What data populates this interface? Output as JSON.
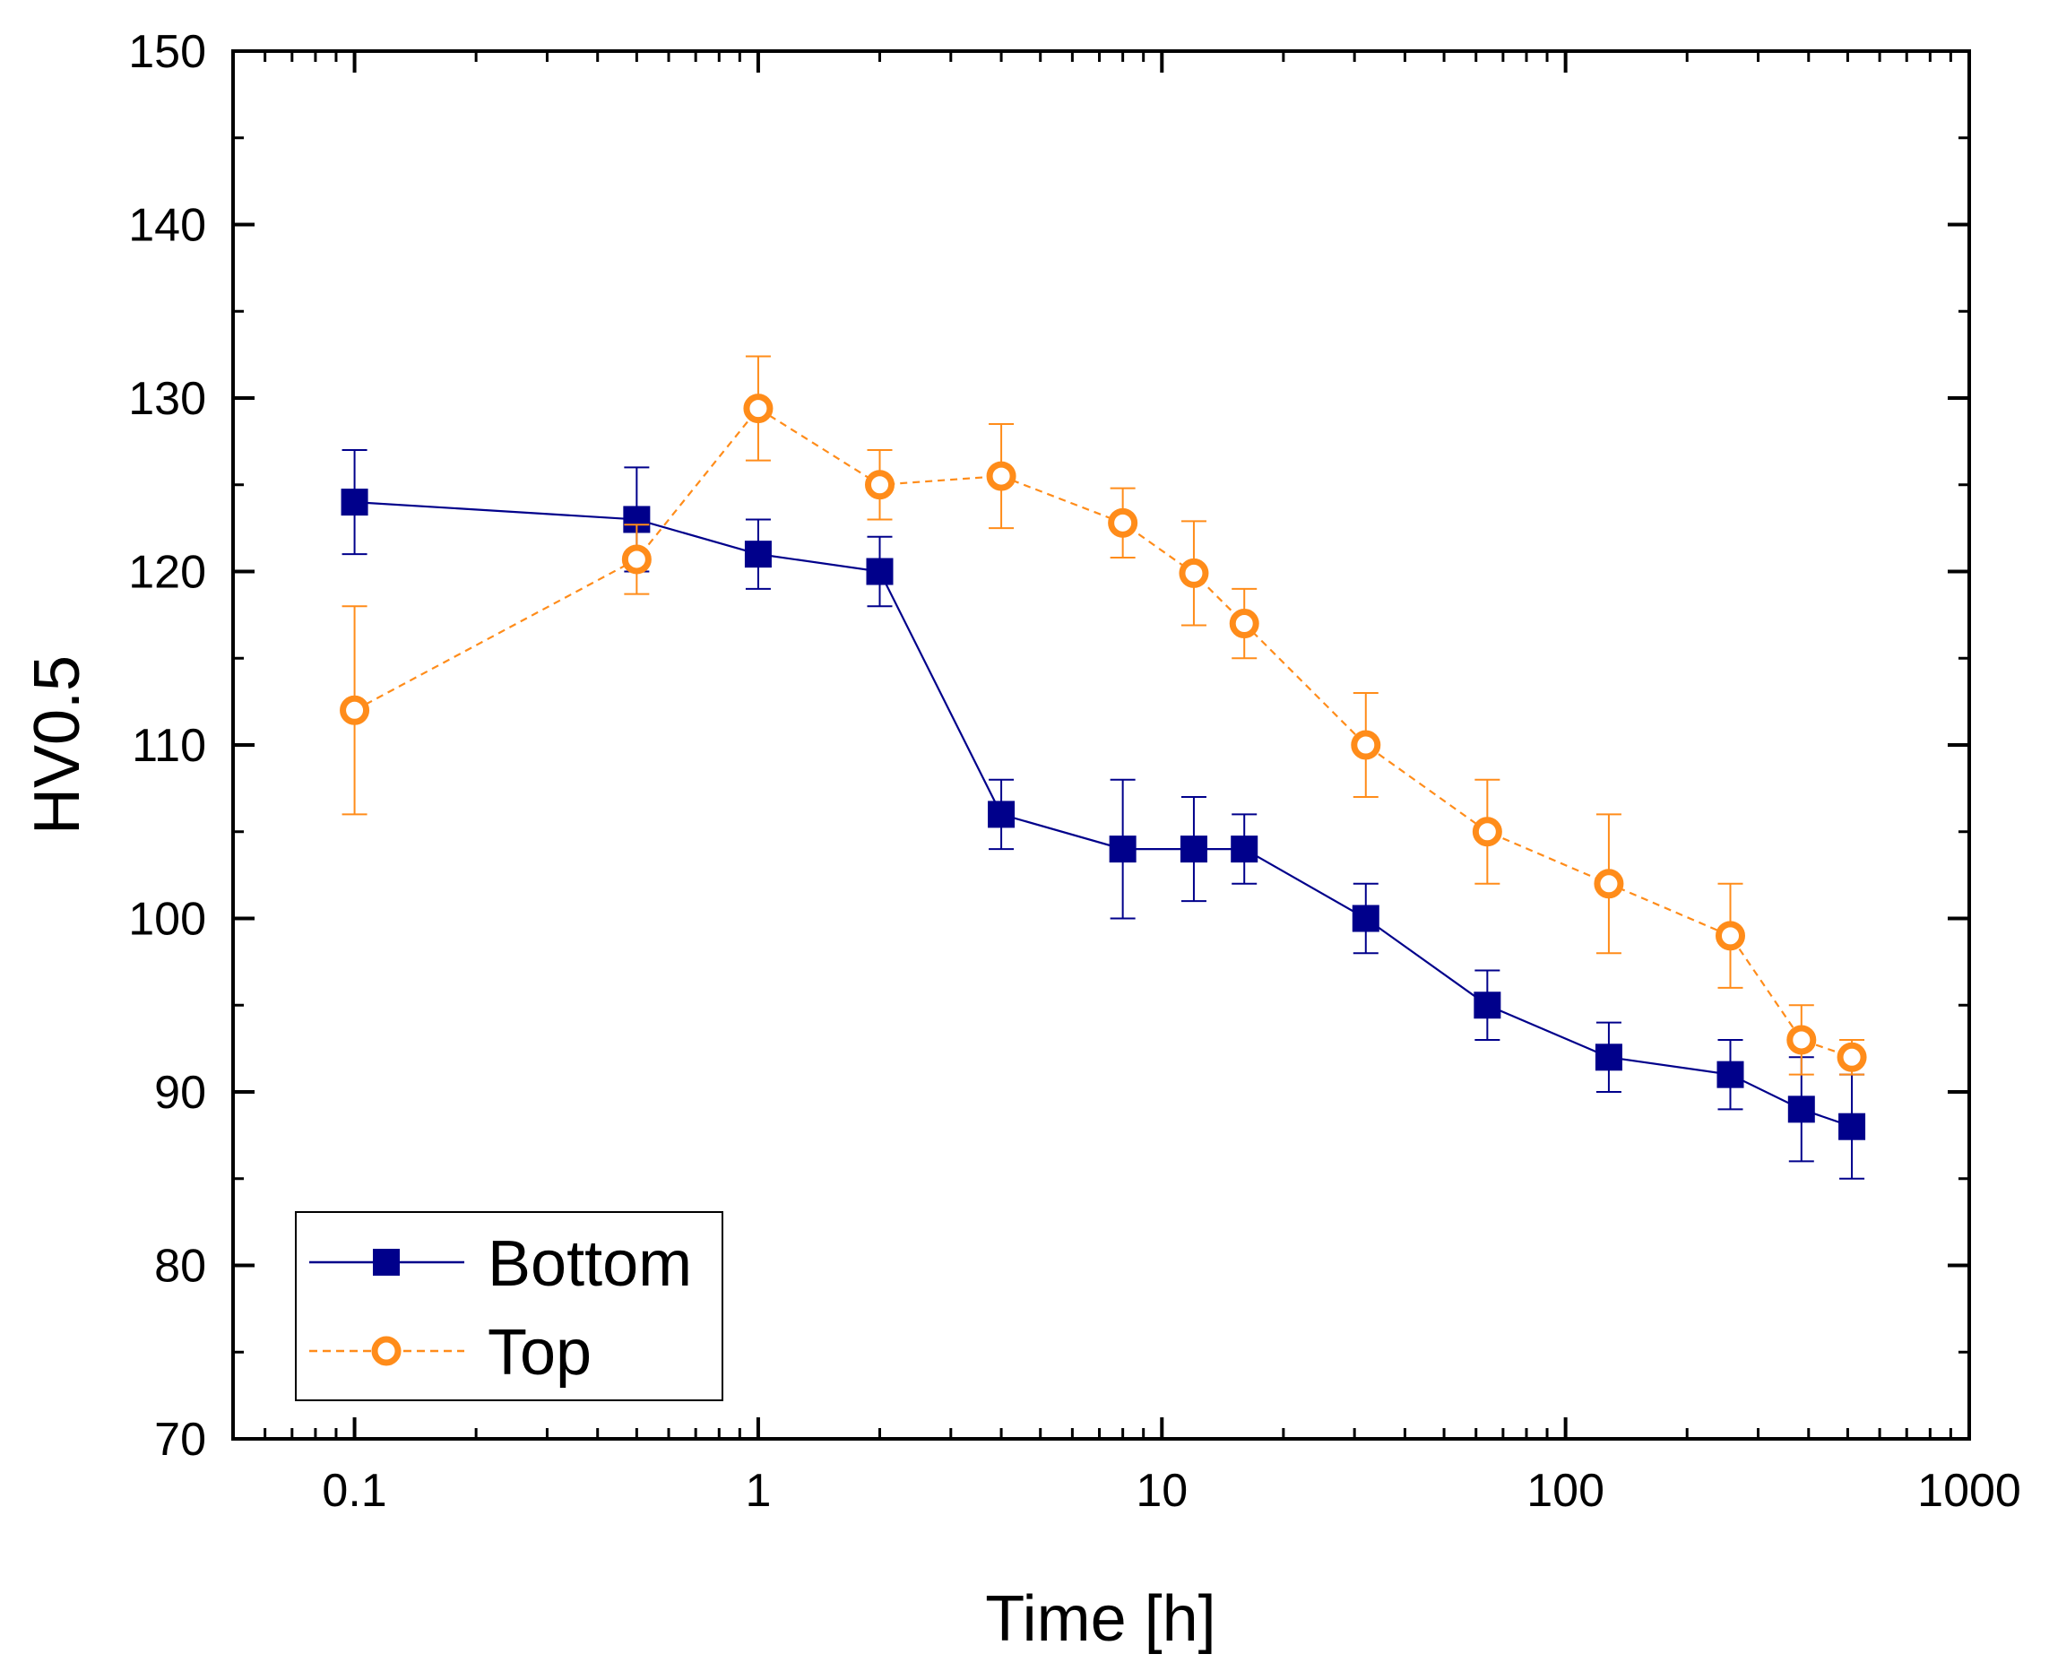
{
  "chart_data": {
    "type": "line",
    "xlabel": "Time [h]",
    "ylabel": "HV0.5",
    "x_scale": "log",
    "xlim": [
      0.05,
      1000
    ],
    "ylim": [
      70,
      150
    ],
    "x_ticks": [
      {
        "value": 0.1,
        "label": "0.1"
      },
      {
        "value": 1,
        "label": "1"
      },
      {
        "value": 10,
        "label": "10"
      },
      {
        "value": 100,
        "label": "100"
      },
      {
        "value": 1000,
        "label": "1000"
      }
    ],
    "y_ticks": [
      {
        "value": 70,
        "label": "70"
      },
      {
        "value": 80,
        "label": "80"
      },
      {
        "value": 90,
        "label": "90"
      },
      {
        "value": 100,
        "label": "100"
      },
      {
        "value": 110,
        "label": "110"
      },
      {
        "value": 120,
        "label": "120"
      },
      {
        "value": 130,
        "label": "130"
      },
      {
        "value": 140,
        "label": "140"
      },
      {
        "value": 150,
        "label": "150"
      }
    ],
    "grid": false,
    "legend_position": "bottom-left",
    "series": [
      {
        "name": "Bottom",
        "color": "#00008b",
        "marker": "filled-square",
        "line": "solid",
        "x": [
          0.1,
          0.5,
          1,
          2,
          4,
          8,
          12,
          16,
          32,
          64,
          128,
          256,
          384,
          512
        ],
        "y": [
          124,
          123,
          121,
          120,
          106,
          104,
          104,
          104,
          100,
          95,
          92,
          91,
          89,
          88
        ],
        "err": [
          3,
          3,
          2,
          2,
          2,
          4,
          3,
          2,
          2,
          2,
          2,
          2,
          3,
          3
        ]
      },
      {
        "name": "Top",
        "color": "#ff8c1a",
        "marker": "open-circle",
        "line": "dashed",
        "x": [
          0.1,
          0.5,
          1,
          2,
          4,
          8,
          12,
          16,
          32,
          64,
          128,
          256,
          384,
          512
        ],
        "y": [
          112,
          120.7,
          129.4,
          125,
          125.5,
          122.8,
          119.9,
          117,
          110,
          105,
          102,
          99,
          93,
          92
        ],
        "err": [
          6,
          2,
          3,
          2,
          3,
          2,
          3,
          2,
          3,
          3,
          4,
          3,
          2,
          1
        ]
      }
    ]
  }
}
